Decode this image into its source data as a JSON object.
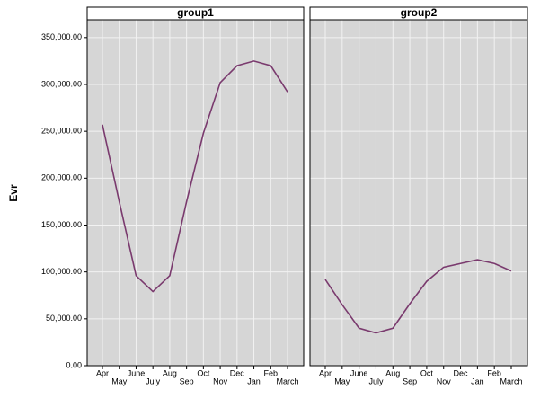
{
  "chart_data": [
    {
      "type": "line",
      "title": "group1",
      "y_label": "Evr",
      "categories": [
        "Apr",
        "May",
        "June",
        "July",
        "Aug",
        "Sep",
        "Oct",
        "Nov",
        "Dec",
        "Jan",
        "Feb",
        "March"
      ],
      "values": [
        257000,
        175000,
        96000,
        79000,
        96000,
        175000,
        248000,
        302000,
        320000,
        325000,
        320000,
        292000
      ],
      "color": "#7a3a6e",
      "ylim": [
        0,
        369000
      ],
      "yticks": [
        {
          "value": 0,
          "label": "0.00"
        },
        {
          "value": 50000,
          "label": "50,000.00"
        },
        {
          "value": 100000,
          "label": "100,000.00"
        },
        {
          "value": 150000,
          "label": "150,000.00"
        },
        {
          "value": 200000,
          "label": "200,000.00"
        },
        {
          "value": 250000,
          "label": "250,000.00"
        },
        {
          "value": 300000,
          "label": "300,000.00"
        },
        {
          "value": 350000,
          "label": "350,000.00"
        }
      ],
      "grid": true
    },
    {
      "type": "line",
      "title": "group2",
      "categories": [
        "Apr",
        "May",
        "June",
        "July",
        "Aug",
        "Sep",
        "Oct",
        "Nov",
        "Dec",
        "Jan",
        "Feb",
        "March"
      ],
      "values": [
        92000,
        65000,
        40000,
        35000,
        40000,
        66000,
        90000,
        105000,
        109000,
        113000,
        109000,
        101000
      ],
      "color": "#7a3a6e",
      "ylim": [
        0,
        369000
      ],
      "yticks": [
        0,
        50000,
        100000,
        150000,
        200000,
        250000,
        300000,
        350000
      ],
      "grid": true
    }
  ]
}
